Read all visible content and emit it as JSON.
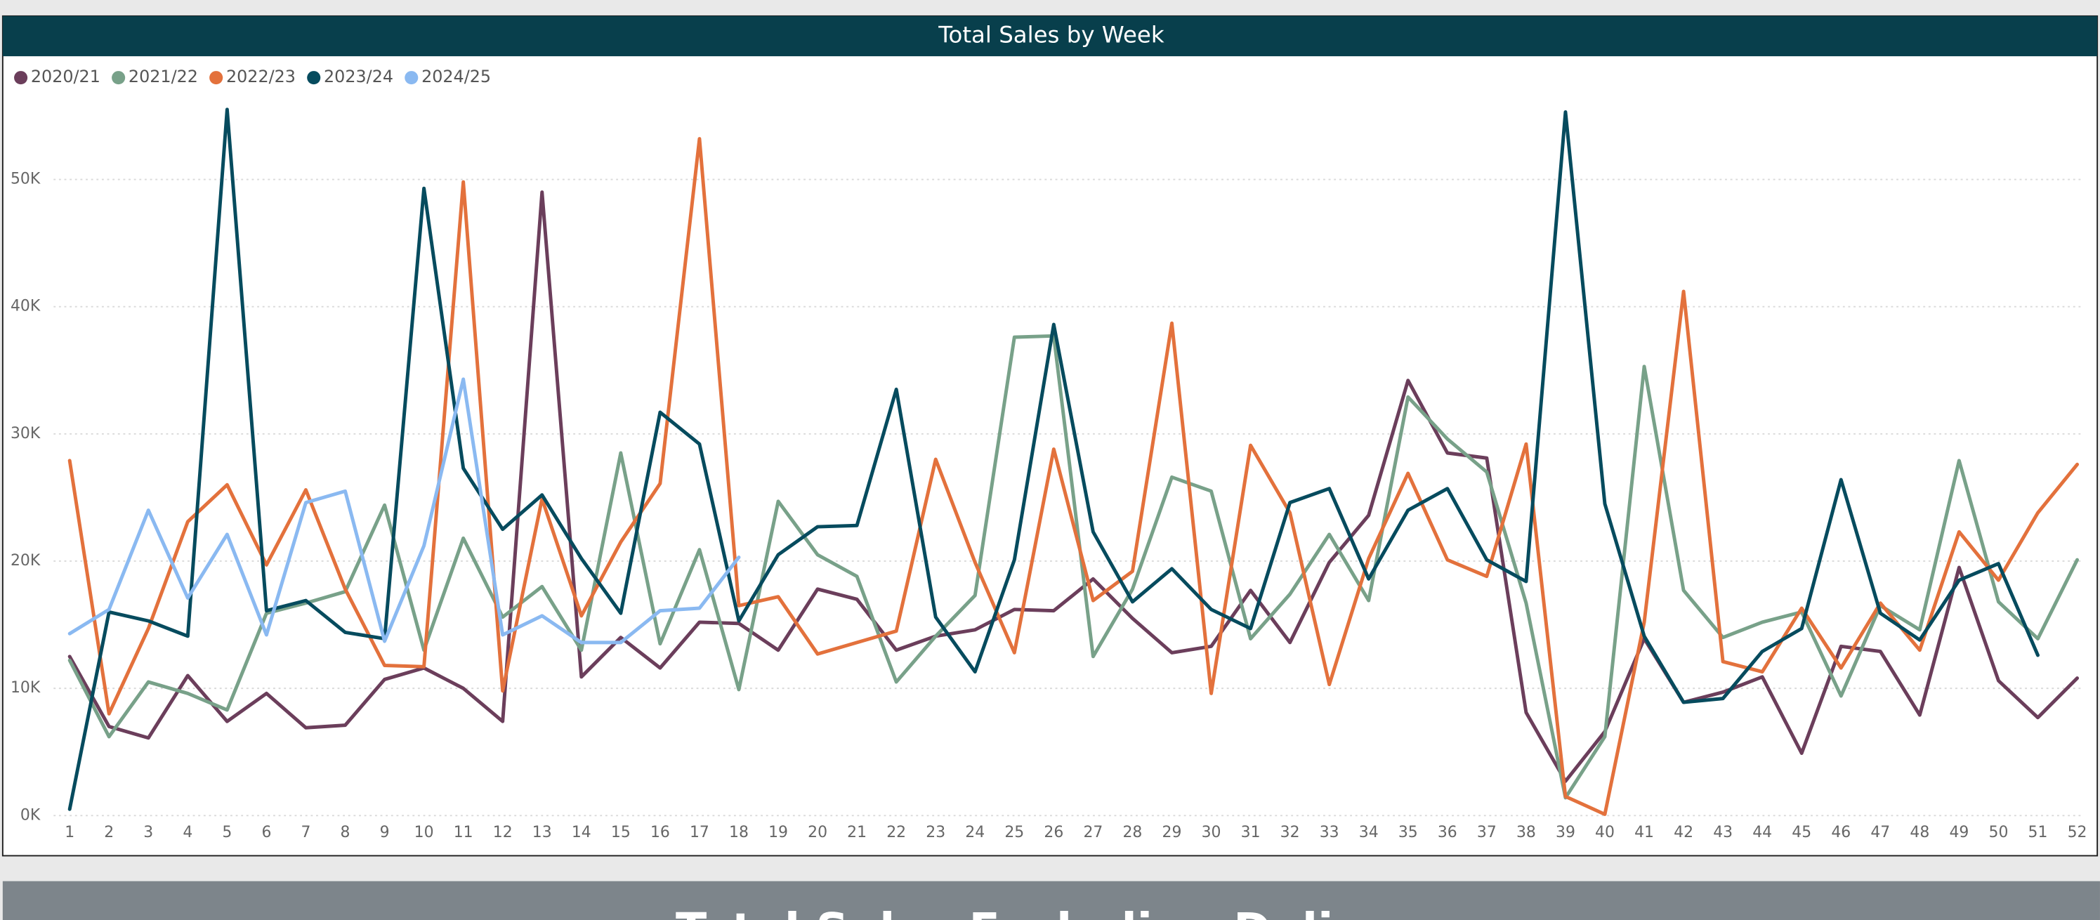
{
  "chart_data": {
    "type": "line",
    "title": "Total Sales by Week",
    "categories": [
      1,
      2,
      3,
      4,
      5,
      6,
      7,
      8,
      9,
      10,
      11,
      12,
      13,
      14,
      15,
      16,
      17,
      18,
      19,
      20,
      21,
      22,
      23,
      24,
      25,
      26,
      27,
      28,
      29,
      30,
      31,
      32,
      33,
      34,
      35,
      36,
      37,
      38,
      39,
      40,
      41,
      42,
      43,
      44,
      45,
      46,
      47,
      48,
      49,
      50,
      51,
      52
    ],
    "ylim": [
      0,
      56000
    ],
    "yticks": [
      {
        "value": 0,
        "label": "0K"
      },
      {
        "value": 10000,
        "label": "10K"
      },
      {
        "value": 20000,
        "label": "20K"
      },
      {
        "value": 30000,
        "label": "30K"
      },
      {
        "value": 40000,
        "label": "40K"
      },
      {
        "value": 50000,
        "label": "50K"
      }
    ],
    "grid": true,
    "legend": "top-left",
    "series": [
      {
        "name": "2020/21",
        "color": "#6b3e5b",
        "values": [
          12500,
          7000,
          6100,
          11000,
          7400,
          9600,
          6900,
          7100,
          10700,
          11600,
          10000,
          7400,
          49000,
          10900,
          14000,
          11600,
          15200,
          15100,
          13000,
          17800,
          17000,
          13000,
          14100,
          14600,
          16200,
          16100,
          18600,
          15500,
          12800,
          13300,
          17700,
          13600,
          19900,
          23600,
          34200,
          28500,
          28100,
          8100,
          2700,
          6600,
          13900,
          8900,
          9700,
          10900,
          4900,
          13300,
          12900,
          7900,
          19500,
          10600,
          7700,
          10800
        ]
      },
      {
        "name": "2021/22",
        "color": "#78a189",
        "values": [
          12200,
          6200,
          10500,
          9600,
          8300,
          15900,
          16700,
          17600,
          24400,
          13000,
          21800,
          15600,
          18000,
          13000,
          28500,
          13500,
          20900,
          9900,
          24700,
          20500,
          18800,
          10500,
          14100,
          17300,
          37600,
          37700,
          12500,
          17800,
          26600,
          25500,
          13900,
          17400,
          22100,
          16900,
          32900,
          29600,
          27000,
          16700,
          1400,
          6200,
          35300,
          17700,
          14000,
          15200,
          16000,
          9400,
          16500,
          14600,
          27900,
          16800,
          13900,
          20100
        ]
      },
      {
        "name": "2022/23",
        "color": "#e3713c",
        "values": [
          27900,
          8000,
          14700,
          23100,
          26000,
          19700,
          25600,
          17800,
          11800,
          11700,
          49800,
          9800,
          24900,
          15700,
          21500,
          26100,
          53200,
          16500,
          17200,
          12700,
          13600,
          14500,
          28000,
          19900,
          12800,
          28800,
          16900,
          19200,
          38700,
          9600,
          29100,
          23800,
          10300,
          20200,
          26900,
          20100,
          18800,
          29200,
          1500,
          100,
          15200,
          41200,
          12100,
          11300,
          16300,
          11600,
          16700,
          13000,
          22300,
          18500,
          23800,
          27600
        ]
      },
      {
        "name": "2023/24",
        "color": "#064b5e",
        "values": [
          500,
          16000,
          15300,
          14100,
          55500,
          16100,
          16900,
          14400,
          13900,
          49300,
          27300,
          22500,
          25200,
          20200,
          15900,
          31700,
          29200,
          15300,
          20500,
          22700,
          22800,
          33500,
          15600,
          11300,
          20100,
          38600,
          22300,
          16800,
          19400,
          16200,
          14700,
          24600,
          25700,
          18600,
          24000,
          25700,
          20100,
          18400,
          55300,
          24500,
          14100,
          8900,
          9200,
          12900,
          14700,
          26400,
          15900,
          13800,
          18500,
          19800,
          12600,
          null
        ]
      },
      {
        "name": "2024/25",
        "color": "#8ab9f1",
        "values": [
          14300,
          16200,
          24000,
          17100,
          22100,
          14200,
          24600,
          25500,
          13700,
          21200,
          34300,
          14200,
          15700,
          13600,
          13600,
          16100,
          16300,
          20300,
          null,
          null,
          null,
          null,
          null,
          null,
          null,
          null,
          null,
          null,
          null,
          null,
          null,
          null,
          null,
          null,
          null,
          null,
          null,
          null,
          null,
          null,
          null,
          null,
          null,
          null,
          null,
          null,
          null,
          null,
          null,
          null,
          null,
          null
        ]
      }
    ]
  },
  "banner_title": "Total Sales Excluding Deli"
}
